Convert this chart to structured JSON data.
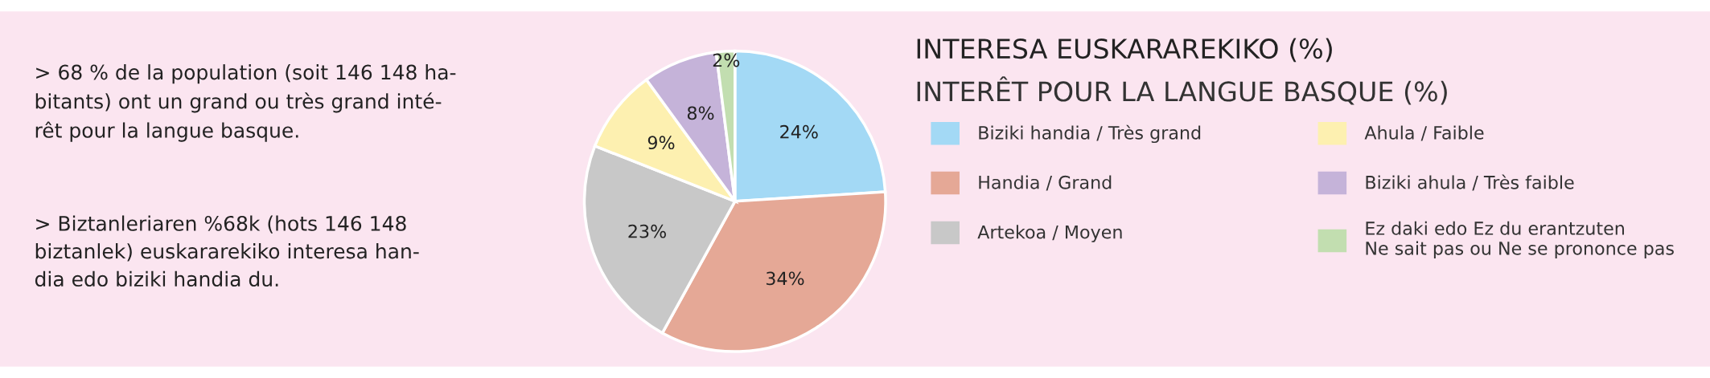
{
  "chart_data": {
    "type": "pie",
    "title": "INTERESA EUSKARAREKIKO (%)",
    "subtitle": "INTERÊT POUR LA LANGUE BASQUE (%)",
    "categories": [
      "Biziki handia / Très grand",
      "Handia / Grand",
      "Artekoa / Moyen",
      "Ahula / Faible",
      "Biziki ahula / Très faible",
      "Ez daki edo Ez du erantzuten\nNe sait pas ou Ne se prononce pas"
    ],
    "values": [
      24,
      34,
      23,
      9,
      8,
      2
    ],
    "value_labels": [
      "24%",
      "34%",
      "23%",
      "9%",
      "8%",
      "2%"
    ],
    "colors": [
      "#a3d9f5",
      "#e5a896",
      "#c8c8c8",
      "#fdf0b0",
      "#c5b3d9",
      "#c2deb0"
    ],
    "legend": "right",
    "annotations": [
      "> 68 % de la population (soit 146 148 ha-\nbitants) ont un grand ou très grand inté-\nrêt pour la langue basque.",
      "> Biztanleriaren %68k (hots 146 148\nbiztanlek) euskararekiko interesa han-\ndia edo biziki handia du."
    ]
  }
}
